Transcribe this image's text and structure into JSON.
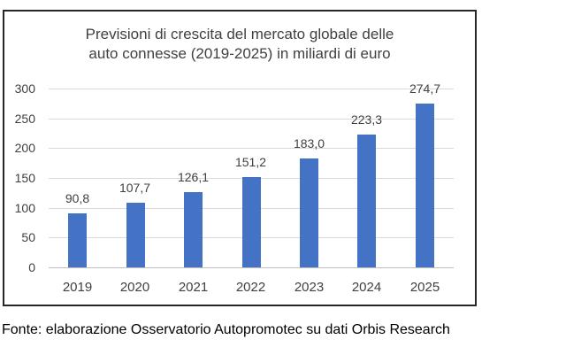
{
  "chart": {
    "title_line1": "Previsioni di crescita del mercato globale delle",
    "title_line2": "auto connesse (2019-2025) in miliardi di euro"
  },
  "footer": {
    "source_text": "Fonte: elaborazione Osservatorio Autopromotec su dati Orbis Research"
  },
  "colors": {
    "bar": "#4472C4",
    "gridline": "#D9D9D9",
    "axis_line": "#BFBFBF",
    "chart_text": "#404040",
    "frame_border": "#262626",
    "footer_text": "#000000",
    "background": "#FFFFFF"
  },
  "chart_data": {
    "type": "bar",
    "title": "Previsioni di crescita del mercato globale delle auto connesse (2019-2025) in miliardi di euro",
    "categories": [
      "2019",
      "2020",
      "2021",
      "2022",
      "2023",
      "2024",
      "2025"
    ],
    "values": [
      90.8,
      107.7,
      126.1,
      151.2,
      183.0,
      223.3,
      274.7
    ],
    "value_labels": [
      "90,8",
      "107,7",
      "126,1",
      "151,2",
      "183,0",
      "223,3",
      "274,7"
    ],
    "xlabel": "",
    "ylabel": "",
    "ylim": [
      0,
      300
    ],
    "yticks": [
      0,
      50,
      100,
      150,
      200,
      250,
      300
    ],
    "grid": true,
    "legend": false,
    "bar_color": "#4472C4"
  }
}
